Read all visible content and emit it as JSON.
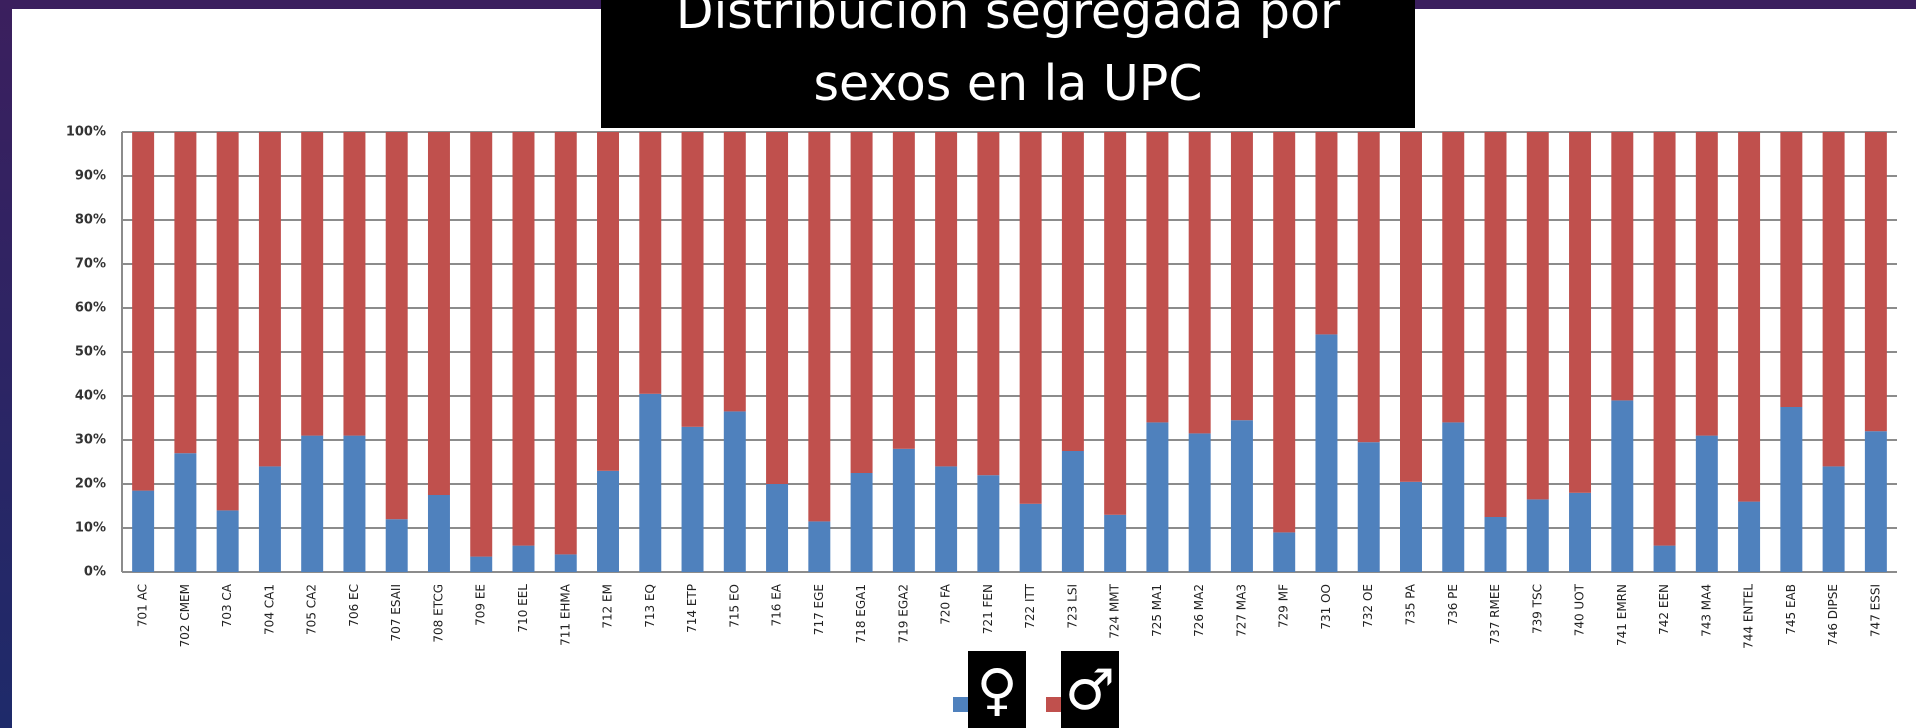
{
  "chart_data": {
    "type": "stacked_bar_100",
    "title": "Distribución segregada por sexos en la UPC",
    "categories": [
      "701 AC",
      "702 CMEM",
      "703 CA",
      "704 CA1",
      "705 CA2",
      "706 EC",
      "707 ESAII",
      "708 ETCG",
      "709 EE",
      "710 EEL",
      "711 EHMA",
      "712 EM",
      "713 EQ",
      "714 ETP",
      "715 EO",
      "716 EA",
      "717 EGE",
      "718 EGA1",
      "719 EGA2",
      "720 FA",
      "721 FEN",
      "722 ITT",
      "723 LSI",
      "724 MMT",
      "725 MA1",
      "726 MA2",
      "727 MA3",
      "729 MF",
      "731 OO",
      "732 OE",
      "735 PA",
      "736 PE",
      "737 RMEE",
      "739 TSC",
      "740 UOT",
      "741 EMRN",
      "742 EEN",
      "743 MA4",
      "744 ENTEL",
      "745 EAB",
      "746 DIPSE",
      "747 ESSI"
    ],
    "series": [
      {
        "name": "♀",
        "color": "#4f81bd",
        "values": [
          18.5,
          27,
          14,
          24,
          31,
          31,
          12,
          17.5,
          3.5,
          6,
          4,
          23,
          40.5,
          33,
          36.5,
          20,
          11.5,
          22.5,
          28,
          24,
          22,
          15.5,
          27.5,
          13,
          34,
          31.5,
          34.5,
          9,
          54,
          29.5,
          20.5,
          34,
          12.5,
          16.5,
          18,
          39,
          6,
          31,
          16,
          37.5,
          24,
          32
        ]
      },
      {
        "name": "♂",
        "color": "#c0504d",
        "values": [
          81.5,
          73,
          86,
          76,
          69,
          69,
          88,
          82.5,
          96.5,
          94,
          96,
          77,
          59.5,
          67,
          63.5,
          80,
          88.5,
          77.5,
          72,
          76,
          78,
          84.5,
          72.5,
          87,
          66,
          68.5,
          65.5,
          91,
          46,
          70.5,
          79.5,
          66,
          87.5,
          83.5,
          82,
          61,
          94,
          69,
          84,
          62.5,
          76,
          68
        ]
      }
    ],
    "ylim": [
      0,
      100
    ],
    "yticks": [
      {
        "value": 0,
        "label": "0%"
      },
      {
        "value": 10,
        "label": "10%"
      },
      {
        "value": 20,
        "label": "20%"
      },
      {
        "value": 30,
        "label": "30%"
      },
      {
        "value": 40,
        "label": "40%"
      },
      {
        "value": 50,
        "label": "50%"
      },
      {
        "value": 60,
        "label": "60%"
      },
      {
        "value": 70,
        "label": "70%"
      },
      {
        "value": 80,
        "label": "80%"
      },
      {
        "value": 90,
        "label": "90%"
      },
      {
        "value": 100,
        "label": "100%"
      }
    ],
    "grid": true
  }
}
